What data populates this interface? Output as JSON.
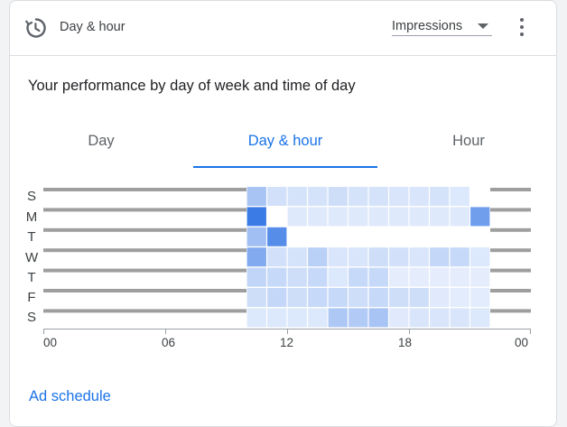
{
  "header": {
    "title": "Day & hour",
    "metric_selected": "Impressions",
    "icons": {
      "schedule": "clock-history-icon",
      "more": "more-vert-icon",
      "caret": "caret-down-icon"
    }
  },
  "section_title": "Your performance by day of week and time of day",
  "tabs": [
    {
      "label": "Day",
      "active": false
    },
    {
      "label": "Day & hour",
      "active": true
    },
    {
      "label": "Hour",
      "active": false
    }
  ],
  "footer": {
    "link_label": "Ad schedule"
  },
  "colors": {
    "accent": "#1a73e8",
    "heat_low": "#eaf1fd",
    "heat_high": "#3b7be6",
    "no_data_bar": "#9e9e9e",
    "empty_cell": "#ffffff"
  },
  "chart_data": {
    "type": "heatmap",
    "days": [
      "S",
      "M",
      "T",
      "W",
      "T",
      "F",
      "S"
    ],
    "hours": [
      0,
      1,
      2,
      3,
      4,
      5,
      6,
      7,
      8,
      9,
      10,
      11,
      12,
      13,
      14,
      15,
      16,
      17,
      18,
      19,
      20,
      21,
      22,
      23
    ],
    "x_tick_labels": [
      "00",
      "06",
      "12",
      "18",
      "00"
    ],
    "x_tick_hours": [
      0,
      6,
      12,
      18,
      24
    ],
    "data_hours_range": [
      10,
      21
    ],
    "values": [
      [
        null,
        null,
        null,
        null,
        null,
        null,
        null,
        null,
        null,
        null,
        0.38,
        0.14,
        0.12,
        0.12,
        0.16,
        0.12,
        0.12,
        0.1,
        0.1,
        0.12,
        0.08,
        null,
        null,
        null
      ],
      [
        null,
        null,
        null,
        null,
        null,
        null,
        null,
        null,
        null,
        null,
        1.0,
        0.0,
        0.07,
        0.07,
        0.07,
        0.07,
        0.07,
        0.07,
        0.07,
        0.07,
        0.07,
        0.7,
        null,
        null
      ],
      [
        null,
        null,
        null,
        null,
        null,
        null,
        null,
        null,
        null,
        null,
        0.42,
        0.85,
        0.0,
        0.0,
        0.0,
        0.0,
        0.0,
        0.0,
        0.0,
        0.0,
        0.0,
        0.0,
        null,
        null
      ],
      [
        null,
        null,
        null,
        null,
        null,
        null,
        null,
        null,
        null,
        null,
        0.6,
        0.14,
        0.12,
        0.28,
        0.1,
        0.1,
        0.16,
        0.14,
        0.1,
        0.22,
        0.2,
        0.08,
        null,
        null
      ],
      [
        null,
        null,
        null,
        null,
        null,
        null,
        null,
        null,
        null,
        null,
        0.24,
        0.2,
        0.16,
        0.2,
        0.08,
        0.2,
        0.2,
        0.03,
        0.03,
        0.03,
        0.03,
        0.03,
        null,
        null
      ],
      [
        null,
        null,
        null,
        null,
        null,
        null,
        null,
        null,
        null,
        null,
        0.16,
        0.22,
        0.16,
        0.2,
        0.2,
        0.16,
        0.2,
        0.16,
        0.16,
        0.06,
        0.04,
        0.04,
        null,
        null
      ],
      [
        null,
        null,
        null,
        null,
        null,
        null,
        null,
        null,
        null,
        null,
        0.08,
        0.08,
        0.08,
        0.08,
        0.35,
        0.32,
        0.38,
        0.06,
        0.1,
        0.1,
        0.1,
        0.08,
        null,
        null
      ]
    ]
  }
}
